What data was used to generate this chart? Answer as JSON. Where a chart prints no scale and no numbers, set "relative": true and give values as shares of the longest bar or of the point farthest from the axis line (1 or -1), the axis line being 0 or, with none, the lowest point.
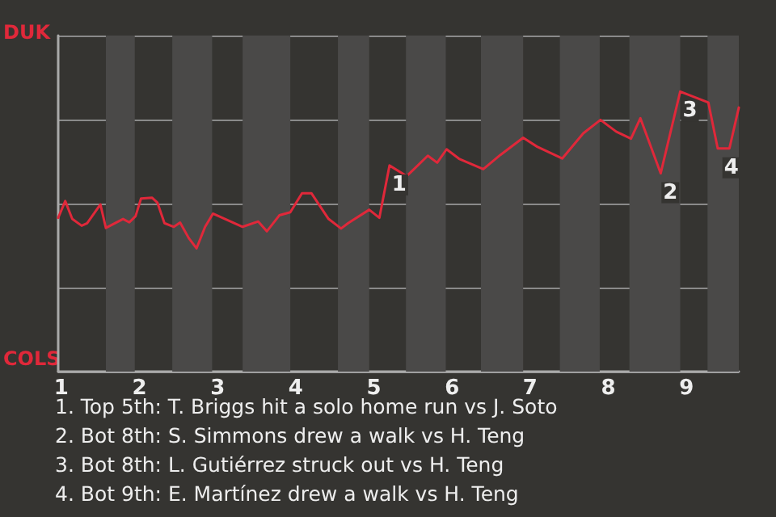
{
  "chart_data": {
    "type": "line",
    "relative": true,
    "xlim": [
      0.96,
      9.67
    ],
    "xticks": [
      1,
      2,
      3,
      4,
      5,
      6,
      7,
      8,
      9
    ],
    "grid": "y",
    "marker": "none",
    "series": [
      {
        "color": "#e0283a",
        "x": [
          0.96,
          1.05,
          1.14,
          1.26,
          1.33,
          1.5,
          1.57,
          1.79,
          1.87,
          1.95,
          2.02,
          2.16,
          2.23,
          2.32,
          2.44,
          2.52,
          2.63,
          2.73,
          2.84,
          2.94,
          3.32,
          3.52,
          3.63,
          3.79,
          3.93,
          4.08,
          4.2,
          4.42,
          4.58,
          4.67,
          4.94,
          5.07,
          5.2,
          5.42,
          5.69,
          5.81,
          5.93,
          6.09,
          6.4,
          6.62,
          6.91,
          7.09,
          7.41,
          7.68,
          7.9,
          8.1,
          8.29,
          8.41,
          8.67,
          8.92,
          9.28,
          9.4,
          9.55,
          9.67
        ],
        "values": [
          0.549,
          0.609,
          0.545,
          0.521,
          0.53,
          0.597,
          0.513,
          0.545,
          0.533,
          0.555,
          0.618,
          0.621,
          0.603,
          0.53,
          0.517,
          0.532,
          0.477,
          0.44,
          0.517,
          0.564,
          0.517,
          0.536,
          0.501,
          0.558,
          0.569,
          0.637,
          0.637,
          0.545,
          0.511,
          0.53,
          0.578,
          0.549,
          0.736,
          0.698,
          0.771,
          0.746,
          0.794,
          0.76,
          0.723,
          0.774,
          0.835,
          0.803,
          0.761,
          0.851,
          0.899,
          0.857,
          0.832,
          0.905,
          0.708,
          1,
          0.961,
          0.797,
          0.797,
          0.943
        ]
      }
    ],
    "bands": [
      {
        "axis": "x",
        "from": 1.57,
        "to": 1.94,
        "color": "#4a4948"
      },
      {
        "axis": "x",
        "from": 2.42,
        "to": 2.93,
        "color": "#4a4948"
      },
      {
        "axis": "x",
        "from": 3.32,
        "to": 3.93,
        "color": "#4a4948"
      },
      {
        "axis": "x",
        "from": 4.54,
        "to": 4.94,
        "color": "#4a4948"
      },
      {
        "axis": "x",
        "from": 5.41,
        "to": 5.92,
        "color": "#4a4948"
      },
      {
        "axis": "x",
        "from": 6.37,
        "to": 6.91,
        "color": "#4a4948"
      },
      {
        "axis": "x",
        "from": 7.38,
        "to": 7.89,
        "color": "#4a4948"
      },
      {
        "axis": "x",
        "from": 8.27,
        "to": 8.92,
        "color": "#4a4948"
      },
      {
        "axis": "x",
        "from": 9.27,
        "to": 9.67,
        "color": "#4a4948"
      }
    ],
    "annotations": [
      "DUK",
      "COLS",
      {
        "text": "1",
        "x": 5.2,
        "y": 0.736
      },
      {
        "text": "2",
        "x": 8.67,
        "y": 0.708
      },
      {
        "text": "3",
        "x": 8.92,
        "y": 1
      },
      {
        "text": "4",
        "x": 9.45,
        "y": 0.797
      },
      "1. Top 5th: T. Briggs hit a solo home run vs J. Soto",
      "2. Bot 8th: S. Simmons drew a walk vs H. Teng",
      "3. Bot 8th: L. Gutiérrez struck out vs H. Teng",
      "4. Bot 9th: E. Martínez drew a walk vs H. Teng"
    ]
  }
}
